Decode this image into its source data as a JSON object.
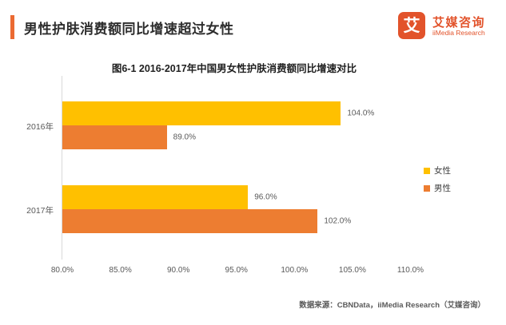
{
  "header": {
    "title": "男性护肤消费额同比增速超过女性",
    "accent_color": "#EB6A32"
  },
  "logo": {
    "mark": "艾",
    "brand_cn": "艾媒咨询",
    "brand_en": "iiMedia Research",
    "color": "#E2532B"
  },
  "chart_data": {
    "type": "bar",
    "orientation": "horizontal",
    "title": "图6-1 2016-2017年中国男女性护肤消费额同比增速对比",
    "categories": [
      "2016年",
      "2017年"
    ],
    "series": [
      {
        "name": "女性",
        "color": "#FFC000",
        "values": [
          104.0,
          96.0
        ],
        "labels": [
          "104.0%",
          "96.0%"
        ]
      },
      {
        "name": "男性",
        "color": "#ED7D31",
        "values": [
          89.0,
          102.0
        ],
        "labels": [
          "89.0%",
          "102.0%"
        ]
      }
    ],
    "xlim": [
      80,
      111
    ],
    "x_ticks": [
      {
        "value": 80,
        "label": "80.0%"
      },
      {
        "value": 85,
        "label": "85.0%"
      },
      {
        "value": 90,
        "label": "90.0%"
      },
      {
        "value": 95,
        "label": "95.0%"
      },
      {
        "value": 100,
        "label": "100.0%"
      },
      {
        "value": 105,
        "label": "105.0%"
      },
      {
        "value": 110,
        "label": "110.0%"
      }
    ],
    "grid": false,
    "legend_position": "right",
    "axis_color": "#d9d9d9",
    "label_color": "#595959"
  },
  "footer": {
    "source": "数据来源：CBNData，iiMedia Research（艾媒咨询）"
  }
}
